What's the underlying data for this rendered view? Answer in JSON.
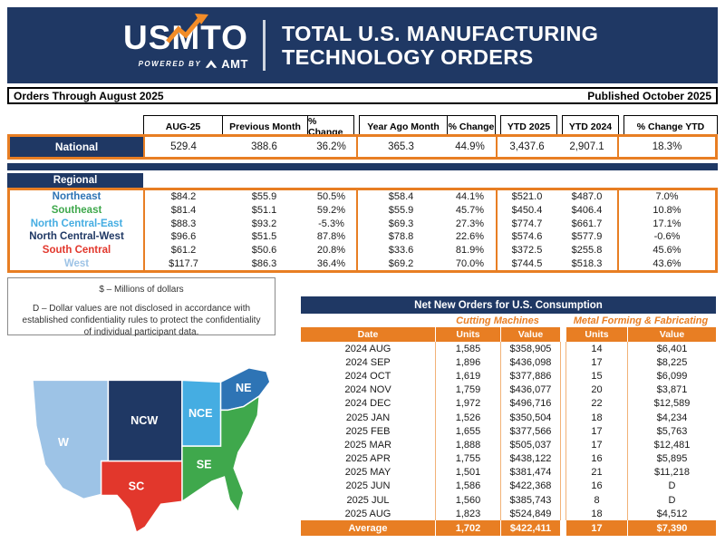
{
  "header": {
    "logo_text": "USMTO",
    "powered_by": "POWERED BY",
    "amt": "AMT",
    "title_line1": "TOTAL U.S. MANUFACTURING",
    "title_line2": "TECHNOLOGY ORDERS"
  },
  "meta": {
    "orders_through": "Orders Through August 2025",
    "published": "Published October 2025"
  },
  "summary_table": {
    "columns": [
      "AUG-25",
      "Previous Month",
      "% Change",
      "Year Ago Month",
      "% Change",
      "YTD 2025",
      "YTD 2024",
      "% Change YTD"
    ],
    "national": {
      "label": "National",
      "values": [
        "529.4",
        "388.6",
        "36.2%",
        "365.3",
        "44.9%",
        "3,437.6",
        "2,907.1",
        "18.3%"
      ]
    },
    "regional_label": "Regional",
    "regions": [
      {
        "label": "Northeast",
        "color": "#2E74B5",
        "values": [
          "$84.2",
          "$55.9",
          "50.5%",
          "$58.4",
          "44.1%",
          "$521.0",
          "$487.0",
          "7.0%"
        ]
      },
      {
        "label": "Southeast",
        "color": "#3FA84C",
        "values": [
          "$81.4",
          "$51.1",
          "59.2%",
          "$55.9",
          "45.7%",
          "$450.4",
          "$406.4",
          "10.8%"
        ]
      },
      {
        "label": "North Central-East",
        "color": "#45ADE2",
        "values": [
          "$88.3",
          "$93.2",
          "-5.3%",
          "$69.3",
          "27.3%",
          "$774.7",
          "$661.7",
          "17.1%"
        ]
      },
      {
        "label": "North Central-West",
        "color": "#1F3864",
        "values": [
          "$96.6",
          "$51.5",
          "87.8%",
          "$78.8",
          "22.6%",
          "$574.6",
          "$577.9",
          "-0.6%"
        ]
      },
      {
        "label": "South Central",
        "color": "#E2372C",
        "values": [
          "$61.2",
          "$50.6",
          "20.8%",
          "$33.6",
          "81.9%",
          "$372.5",
          "$255.8",
          "45.6%"
        ]
      },
      {
        "label": "West",
        "color": "#9DC3E6",
        "values": [
          "$117.7",
          "$86.3",
          "36.4%",
          "$69.2",
          "70.0%",
          "$744.5",
          "$518.3",
          "43.6%"
        ]
      }
    ]
  },
  "notes": {
    "line1": "$ – Millions of dollars",
    "line2": "D – Dollar values are not disclosed in accordance with established confidentiality rules to protect the confidentiality of individual participant data."
  },
  "map": {
    "regions": [
      {
        "label": "W",
        "color": "#9DC3E6"
      },
      {
        "label": "NCW",
        "color": "#1F3864"
      },
      {
        "label": "NCE",
        "color": "#45ADE2"
      },
      {
        "label": "NE",
        "color": "#2E74B5"
      },
      {
        "label": "SC",
        "color": "#E2372C"
      },
      {
        "label": "SE",
        "color": "#3FA84C"
      }
    ]
  },
  "orders_table": {
    "title": "Net New Orders for U.S. Consumption",
    "group1": "Cutting Machines",
    "group2": "Metal Forming & Fabricating",
    "columns": [
      "Date",
      "Units",
      "Value",
      "Units",
      "Value"
    ],
    "rows": [
      [
        "2024 AUG",
        "1,585",
        "$358,905",
        "14",
        "$6,401"
      ],
      [
        "2024 SEP",
        "1,896",
        "$436,098",
        "17",
        "$8,225"
      ],
      [
        "2024 OCT",
        "1,619",
        "$377,886",
        "15",
        "$6,099"
      ],
      [
        "2024 NOV",
        "1,759",
        "$436,077",
        "20",
        "$3,871"
      ],
      [
        "2024 DEC",
        "1,972",
        "$496,716",
        "22",
        "$12,589"
      ],
      [
        "2025 JAN",
        "1,526",
        "$350,504",
        "18",
        "$4,234"
      ],
      [
        "2025 FEB",
        "1,655",
        "$377,566",
        "17",
        "$5,763"
      ],
      [
        "2025 MAR",
        "1,888",
        "$505,037",
        "17",
        "$12,481"
      ],
      [
        "2025 APR",
        "1,755",
        "$438,122",
        "16",
        "$5,895"
      ],
      [
        "2025 MAY",
        "1,501",
        "$381,474",
        "21",
        "$11,218"
      ],
      [
        "2025 JUN",
        "1,586",
        "$422,368",
        "16",
        "D"
      ],
      [
        "2025 JUL",
        "1,560",
        "$385,743",
        "8",
        "D"
      ],
      [
        "2025 AUG",
        "1,823",
        "$524,849",
        "18",
        "$4,512"
      ]
    ],
    "average": [
      "Average",
      "1,702",
      "$422,411",
      "17",
      "$7,390"
    ]
  },
  "colors": {
    "navy": "#1F3864",
    "orange": "#E87E23"
  }
}
